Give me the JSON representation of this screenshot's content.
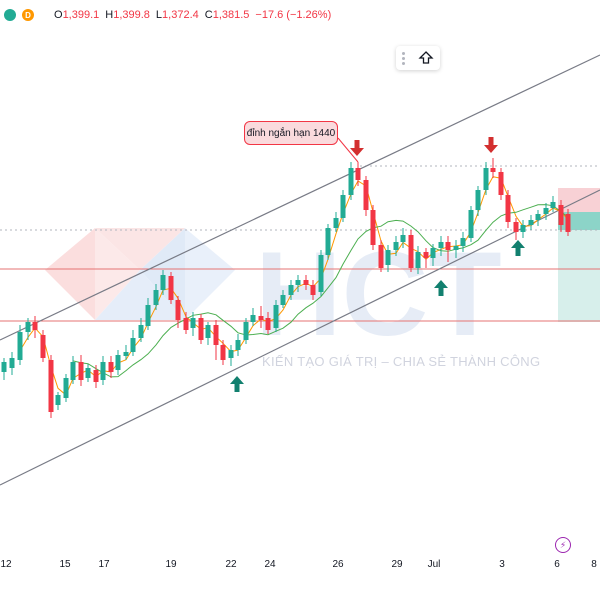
{
  "ohlc": {
    "open_label": "O",
    "open": "1,399.1",
    "high_label": "H",
    "high": "1,399.8",
    "low_label": "L",
    "low": "1,372.4",
    "close_label": "C",
    "close": "1,381.5",
    "change": "−17.6 (−1.26%)",
    "source_badge": "D"
  },
  "annotation": {
    "text": "đỉnh ngắn hạn 1440"
  },
  "watermark": {
    "text": "HCT",
    "slogan": "KIẾN TẠO GIÁ TRỊ – CHIA SẺ THÀNH CÔNG"
  },
  "time_axis": {
    "labels": [
      "12",
      "15",
      "17",
      "19",
      "22",
      "24",
      "26",
      "29",
      "Jul",
      "3",
      "6",
      "8"
    ]
  },
  "toolbar": {
    "scroll_up_icon": "arrow-up-icon"
  },
  "colors": {
    "up": "#22ab94",
    "down": "#f23645",
    "ma_fast": "#ff9800",
    "ma_slow": "#4caf50",
    "channel": "#787b86",
    "arrow_buy": "#12806f",
    "arrow_sell": "#d32f2f"
  }
}
